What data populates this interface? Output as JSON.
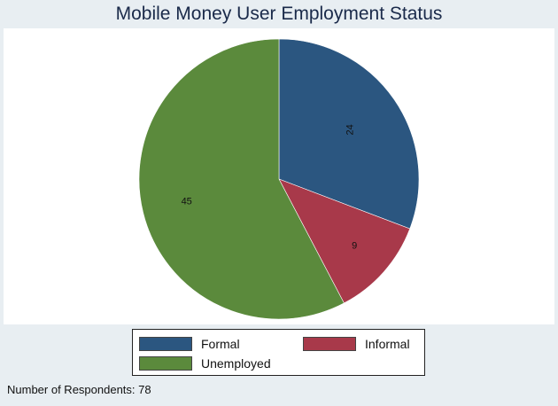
{
  "chart_data": {
    "type": "pie",
    "title": "Mobile Money User Employment Status",
    "slices": [
      {
        "label": "Formal",
        "value": 24,
        "color": "#2b5680"
      },
      {
        "label": "Informal",
        "value": 9,
        "color": "#a8394a"
      },
      {
        "label": "Unemployed",
        "value": 45,
        "color": "#5b8a3c"
      }
    ],
    "legend_position": "bottom",
    "note": "Number of Respondents: 78"
  }
}
